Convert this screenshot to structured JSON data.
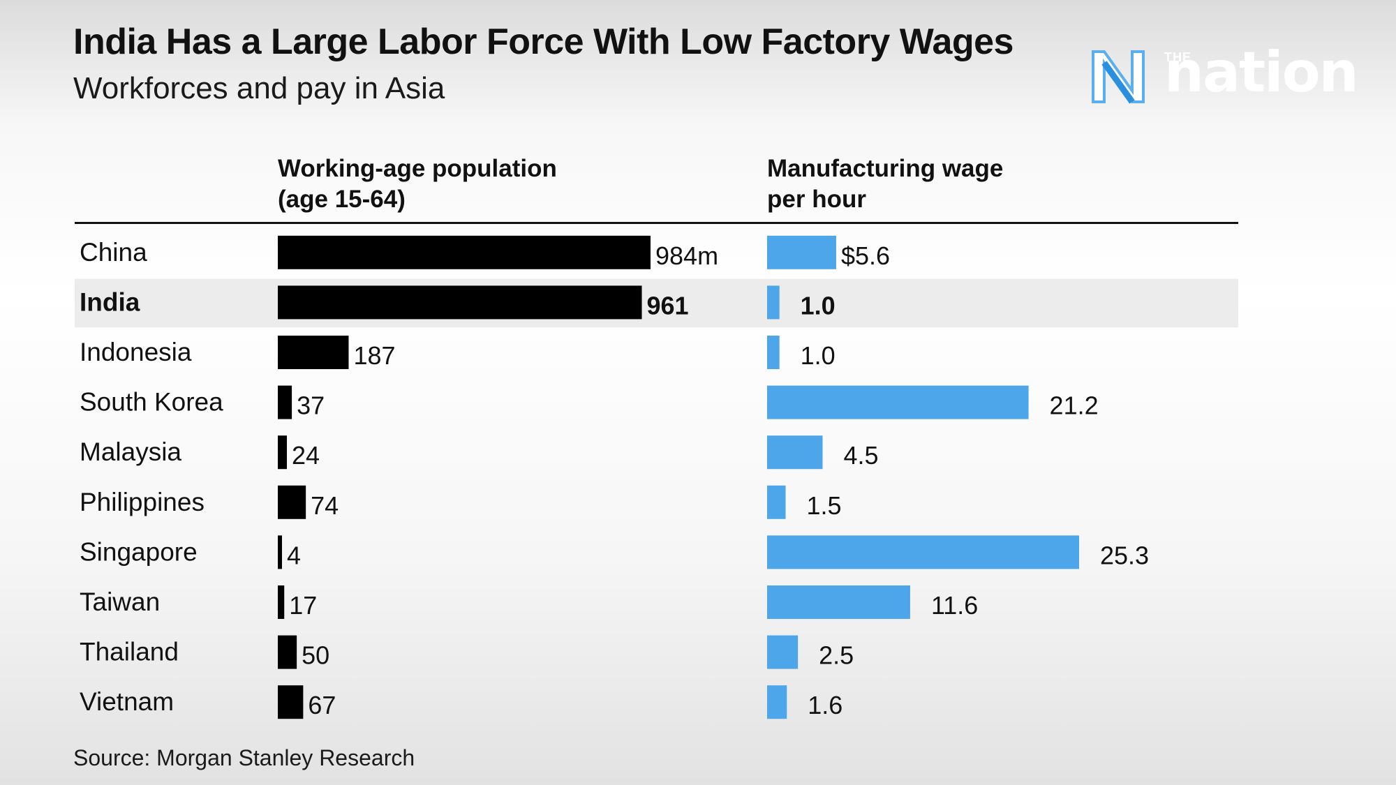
{
  "title": "India Has a Large Labor Force With Low Factory Wages",
  "subtitle": "Workforces and pay in Asia",
  "logo": {
    "small": "THE",
    "name": "nation"
  },
  "source": "Source: Morgan Stanley Research",
  "chart_data": {
    "type": "bar",
    "orientation": "horizontal",
    "title": "India Has a Large Labor Force With Low Factory Wages",
    "subtitle": "Workforces and pay in Asia",
    "categories": [
      "China",
      "India",
      "Indonesia",
      "South Korea",
      "Malaysia",
      "Philippines",
      "Singapore",
      "Taiwan",
      "Thailand",
      "Vietnam"
    ],
    "highlighted_category": "India",
    "series": [
      {
        "name": "Working-age population (age 15-64)",
        "header_lines": [
          "Working-age population",
          "(age 15-64)"
        ],
        "unit": "million",
        "color": "#000000",
        "values": [
          984,
          961,
          187,
          37,
          24,
          74,
          4,
          17,
          50,
          67
        ],
        "labels": [
          "984m",
          "961",
          "187",
          "37",
          "24",
          "74",
          "4",
          "17",
          "50",
          "67"
        ]
      },
      {
        "name": "Manufacturing wage per hour",
        "header_lines": [
          "Manufacturing wage",
          "per hour"
        ],
        "unit": "USD",
        "color": "#4da6ea",
        "values": [
          5.6,
          1.0,
          1.0,
          21.2,
          4.5,
          1.5,
          25.3,
          11.6,
          2.5,
          1.6
        ],
        "labels": [
          "$5.6",
          "1.0",
          "1.0",
          "21.2",
          "4.5",
          "1.5",
          "25.3",
          "11.6",
          "2.5",
          "1.6"
        ]
      }
    ],
    "colors": {
      "highlight_row": "#ececec",
      "text": "#111111"
    }
  }
}
